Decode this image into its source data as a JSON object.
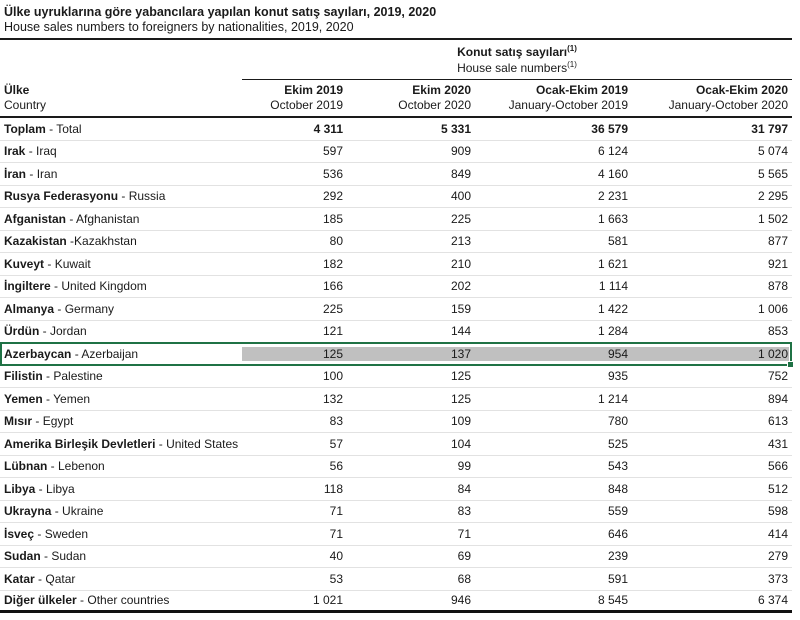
{
  "title": {
    "tr": "Ülke uyruklarına göre yabancılara yapılan konut satış sayıları, 2019, 2020",
    "en": "House sales numbers to foreigners by nationalities, 2019, 2020"
  },
  "table": {
    "group_header": {
      "tr": "Konut satış sayıları",
      "en": "House sale numbers",
      "footnote_mark": "(1)"
    },
    "country_header": {
      "tr": "Ülke",
      "en": "Country"
    },
    "columns": [
      {
        "tr": "Ekim 2019",
        "en": "October 2019"
      },
      {
        "tr": "Ekim 2020",
        "en": "October 2020"
      },
      {
        "tr": "Ocak-Ekim 2019",
        "en": "January-October 2019"
      },
      {
        "tr": "Ocak-Ekim 2020",
        "en": "January-October 2020"
      }
    ],
    "rows": [
      {
        "name_tr": "Toplam",
        "sep": " - ",
        "name_en": "Total",
        "values": [
          "4 311",
          "5 331",
          "36 579",
          "31 797"
        ],
        "bold_values": true
      },
      {
        "name_tr": "Irak",
        "sep": " - ",
        "name_en": "Iraq",
        "values": [
          "597",
          "909",
          "6 124",
          "5 074"
        ]
      },
      {
        "name_tr": "İran",
        "sep": " - ",
        "name_en": "Iran",
        "values": [
          "536",
          "849",
          "4 160",
          "5 565"
        ]
      },
      {
        "name_tr": "Rusya Federasyonu",
        "sep": " - ",
        "name_en": "Russia",
        "values": [
          "292",
          "400",
          "2 231",
          "2 295"
        ]
      },
      {
        "name_tr": "Afganistan",
        "sep": " - ",
        "name_en": "Afghanistan",
        "values": [
          "185",
          "225",
          "1 663",
          "1 502"
        ]
      },
      {
        "name_tr": "Kazakistan",
        "sep": " -",
        "name_en": "Kazakhstan",
        "values": [
          "80",
          "213",
          "581",
          "877"
        ]
      },
      {
        "name_tr": "Kuveyt",
        "sep": " - ",
        "name_en": "Kuwait",
        "values": [
          "182",
          "210",
          "1 621",
          "921"
        ]
      },
      {
        "name_tr": "İngiltere",
        "sep": " - ",
        "name_en": "United Kingdom",
        "values": [
          "166",
          "202",
          "1 114",
          "878"
        ]
      },
      {
        "name_tr": "Almanya",
        "sep": " - ",
        "name_en": "Germany",
        "values": [
          "225",
          "159",
          "1 422",
          "1 006"
        ]
      },
      {
        "name_tr": "Ürdün",
        "sep": " - ",
        "name_en": "Jordan",
        "values": [
          "121",
          "144",
          "1 284",
          "853"
        ]
      },
      {
        "name_tr": "Azerbaycan",
        "sep": " - ",
        "name_en": "Azerbaijan",
        "values": [
          "125",
          "137",
          "954",
          "1 020"
        ],
        "selected": true
      },
      {
        "name_tr": "Filistin",
        "sep": " - ",
        "name_en": "Palestine",
        "values": [
          "100",
          "125",
          "935",
          "752"
        ]
      },
      {
        "name_tr": "Yemen",
        "sep": " - ",
        "name_en": "Yemen",
        "values": [
          "132",
          "125",
          "1 214",
          "894"
        ]
      },
      {
        "name_tr": "Mısır",
        "sep": " - ",
        "name_en": "Egypt",
        "values": [
          "83",
          "109",
          "780",
          "613"
        ]
      },
      {
        "name_tr": "Amerika Birleşik Devletleri",
        "sep": " - ",
        "name_en": "United States",
        "values": [
          "57",
          "104",
          "525",
          "431"
        ]
      },
      {
        "name_tr": "Lübnan",
        "sep": " - ",
        "name_en": "Lebenon",
        "values": [
          "56",
          "99",
          "543",
          "566"
        ]
      },
      {
        "name_tr": "Libya",
        "sep": " - ",
        "name_en": "Libya",
        "values": [
          "118",
          "84",
          "848",
          "512"
        ]
      },
      {
        "name_tr": "Ukrayna",
        "sep": " - ",
        "name_en": "Ukraine",
        "values": [
          "71",
          "83",
          "559",
          "598"
        ]
      },
      {
        "name_tr": "İsveç",
        "sep": " - ",
        "name_en": "Sweden",
        "values": [
          "71",
          "71",
          "646",
          "414"
        ]
      },
      {
        "name_tr": "Sudan",
        "sep": " - ",
        "name_en": "Sudan",
        "values": [
          "40",
          "69",
          "239",
          "279"
        ]
      },
      {
        "name_tr": "Katar",
        "sep": " - ",
        "name_en": "Qatar",
        "values": [
          "53",
          "68",
          "591",
          "373"
        ]
      },
      {
        "name_tr": "Diğer ülkeler",
        "sep": " - ",
        "name_en": "Other countries",
        "values": [
          "1 021",
          "946",
          "8 545",
          "6 374"
        ]
      }
    ],
    "selection": {
      "border_color": "#1f7245",
      "fill_color": "#c0c0c0",
      "selected_country": "Azerbaycan - Azerbaijan"
    }
  }
}
